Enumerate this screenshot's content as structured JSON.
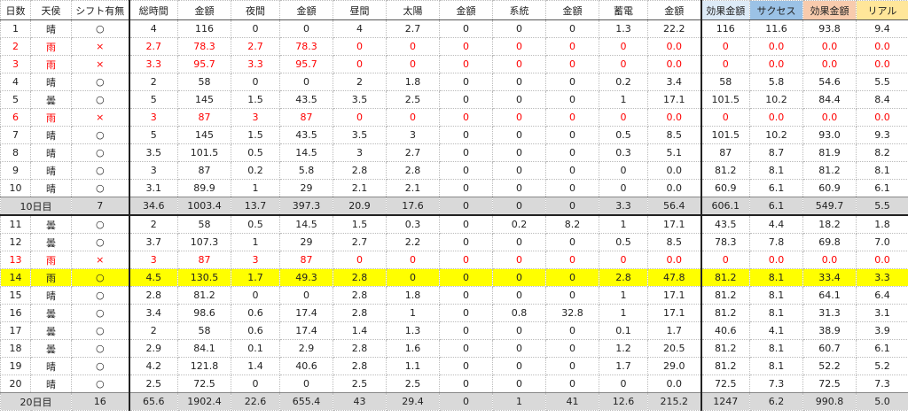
{
  "header": {
    "columns": [
      "日数",
      "天侯",
      "シフト有無",
      "総時間",
      "金額",
      "夜間",
      "金額",
      "昼間",
      "太陽",
      "金額",
      "系統",
      "金額",
      "蓄電",
      "金額",
      "効果金額",
      "サクセス",
      "効果金額",
      "リアル"
    ],
    "column_backgrounds": [
      null,
      null,
      null,
      null,
      null,
      null,
      null,
      null,
      null,
      null,
      null,
      null,
      null,
      null,
      "#ddebf7",
      "#9bc2e6",
      "#f8cbad",
      "#ffe699"
    ]
  },
  "rows": [
    {
      "cells": [
        "1",
        "晴",
        "○",
        "4",
        "116",
        "0",
        "0",
        "4",
        "2.7",
        "0",
        "0",
        "0",
        "1.3",
        "22.2",
        "116",
        "11.6",
        "93.8",
        "9.4"
      ]
    },
    {
      "cells": [
        "2",
        "雨",
        "×",
        "2.7",
        "78.3",
        "2.7",
        "78.3",
        "0",
        "0",
        "0",
        "0",
        "0",
        "0",
        "0.0",
        "0",
        "0.0",
        "0.0",
        "0.0"
      ],
      "color": "#ff0000"
    },
    {
      "cells": [
        "3",
        "雨",
        "×",
        "3.3",
        "95.7",
        "3.3",
        "95.7",
        "0",
        "0",
        "0",
        "0",
        "0",
        "0",
        "0.0",
        "0",
        "0.0",
        "0.0",
        "0.0"
      ],
      "color": "#ff0000"
    },
    {
      "cells": [
        "4",
        "晴",
        "○",
        "2",
        "58",
        "0",
        "0",
        "2",
        "1.8",
        "0",
        "0",
        "0",
        "0.2",
        "3.4",
        "58",
        "5.8",
        "54.6",
        "5.5"
      ]
    },
    {
      "cells": [
        "5",
        "曇",
        "○",
        "5",
        "145",
        "1.5",
        "43.5",
        "3.5",
        "2.5",
        "0",
        "0",
        "0",
        "1",
        "17.1",
        "101.5",
        "10.2",
        "84.4",
        "8.4"
      ]
    },
    {
      "cells": [
        "6",
        "雨",
        "×",
        "3",
        "87",
        "3",
        "87",
        "0",
        "0",
        "0",
        "0",
        "0",
        "0",
        "0.0",
        "0",
        "0.0",
        "0.0",
        "0.0"
      ],
      "color": "#ff0000"
    },
    {
      "cells": [
        "7",
        "晴",
        "○",
        "5",
        "145",
        "1.5",
        "43.5",
        "3.5",
        "3",
        "0",
        "0",
        "0",
        "0.5",
        "8.5",
        "101.5",
        "10.2",
        "93.0",
        "9.3"
      ]
    },
    {
      "cells": [
        "8",
        "晴",
        "○",
        "3.5",
        "101.5",
        "0.5",
        "14.5",
        "3",
        "2.7",
        "0",
        "0",
        "0",
        "0.3",
        "5.1",
        "87",
        "8.7",
        "81.9",
        "8.2"
      ]
    },
    {
      "cells": [
        "9",
        "晴",
        "○",
        "3",
        "87",
        "0.2",
        "5.8",
        "2.8",
        "2.8",
        "0",
        "0",
        "0",
        "0",
        "0.0",
        "81.2",
        "8.1",
        "81.2",
        "8.1"
      ]
    },
    {
      "cells": [
        "10",
        "晴",
        "○",
        "3.1",
        "89.9",
        "1",
        "29",
        "2.1",
        "2.1",
        "0",
        "0",
        "0",
        "0",
        "0.0",
        "60.9",
        "6.1",
        "60.9",
        "6.1"
      ]
    },
    {
      "cells": [
        "10日目",
        "7",
        "34.6",
        "1003.4",
        "13.7",
        "397.3",
        "20.9",
        "17.6",
        "0",
        "0",
        "0",
        "3.3",
        "56.4",
        "606.1",
        "6.1",
        "549.7",
        "5.5"
      ],
      "background": "#d9d9d9"
    },
    {
      "cells": [
        "11",
        "曇",
        "○",
        "2",
        "58",
        "0.5",
        "14.5",
        "1.5",
        "0.3",
        "0",
        "0.2",
        "8.2",
        "1",
        "17.1",
        "43.5",
        "4.4",
        "18.2",
        "1.8"
      ]
    },
    {
      "cells": [
        "12",
        "曇",
        "○",
        "3.7",
        "107.3",
        "1",
        "29",
        "2.7",
        "2.2",
        "0",
        "0",
        "0",
        "0.5",
        "8.5",
        "78.3",
        "7.8",
        "69.8",
        "7.0"
      ]
    },
    {
      "cells": [
        "13",
        "雨",
        "×",
        "3",
        "87",
        "3",
        "87",
        "0",
        "0",
        "0",
        "0",
        "0",
        "0",
        "0.0",
        "0",
        "0.0",
        "0.0",
        "0.0"
      ],
      "color": "#ff0000"
    },
    {
      "cells": [
        "14",
        "雨",
        "○",
        "4.5",
        "130.5",
        "1.7",
        "49.3",
        "2.8",
        "0",
        "0",
        "0",
        "0",
        "2.8",
        "47.8",
        "81.2",
        "8.1",
        "33.4",
        "3.3"
      ],
      "background": "#ffff00"
    },
    {
      "cells": [
        "15",
        "晴",
        "○",
        "2.8",
        "81.2",
        "0",
        "0",
        "2.8",
        "1.8",
        "0",
        "0",
        "0",
        "1",
        "17.1",
        "81.2",
        "8.1",
        "64.1",
        "6.4"
      ]
    },
    {
      "cells": [
        "16",
        "曇",
        "○",
        "3.4",
        "98.6",
        "0.6",
        "17.4",
        "2.8",
        "1",
        "0",
        "0.8",
        "32.8",
        "1",
        "17.1",
        "81.2",
        "8.1",
        "31.3",
        "3.1"
      ]
    },
    {
      "cells": [
        "17",
        "曇",
        "○",
        "2",
        "58",
        "0.6",
        "17.4",
        "1.4",
        "1.3",
        "0",
        "0",
        "0",
        "0.1",
        "1.7",
        "40.6",
        "4.1",
        "38.9",
        "3.9"
      ]
    },
    {
      "cells": [
        "18",
        "曇",
        "○",
        "2.9",
        "84.1",
        "0.1",
        "2.9",
        "2.8",
        "1.6",
        "0",
        "0",
        "0",
        "1.2",
        "20.5",
        "81.2",
        "8.1",
        "60.7",
        "6.1"
      ]
    },
    {
      "cells": [
        "19",
        "晴",
        "○",
        "4.2",
        "121.8",
        "1.4",
        "40.6",
        "2.8",
        "1.1",
        "0",
        "0",
        "0",
        "1.7",
        "29.0",
        "81.2",
        "8.1",
        "52.2",
        "5.2"
      ]
    },
    {
      "cells": [
        "20",
        "晴",
        "○",
        "2.5",
        "72.5",
        "0",
        "0",
        "2.5",
        "2.5",
        "0",
        "0",
        "0",
        "0",
        "0.0",
        "72.5",
        "7.3",
        "72.5",
        "7.3"
      ]
    },
    {
      "cells": [
        "20日目",
        "16",
        "65.6",
        "1902.4",
        "22.6",
        "655.4",
        "43",
        "29.4",
        "0",
        "1",
        "41",
        "12.6",
        "215.2",
        "1247",
        "6.2",
        "990.8",
        "5.0"
      ],
      "background": "#d9d9d9"
    }
  ]
}
